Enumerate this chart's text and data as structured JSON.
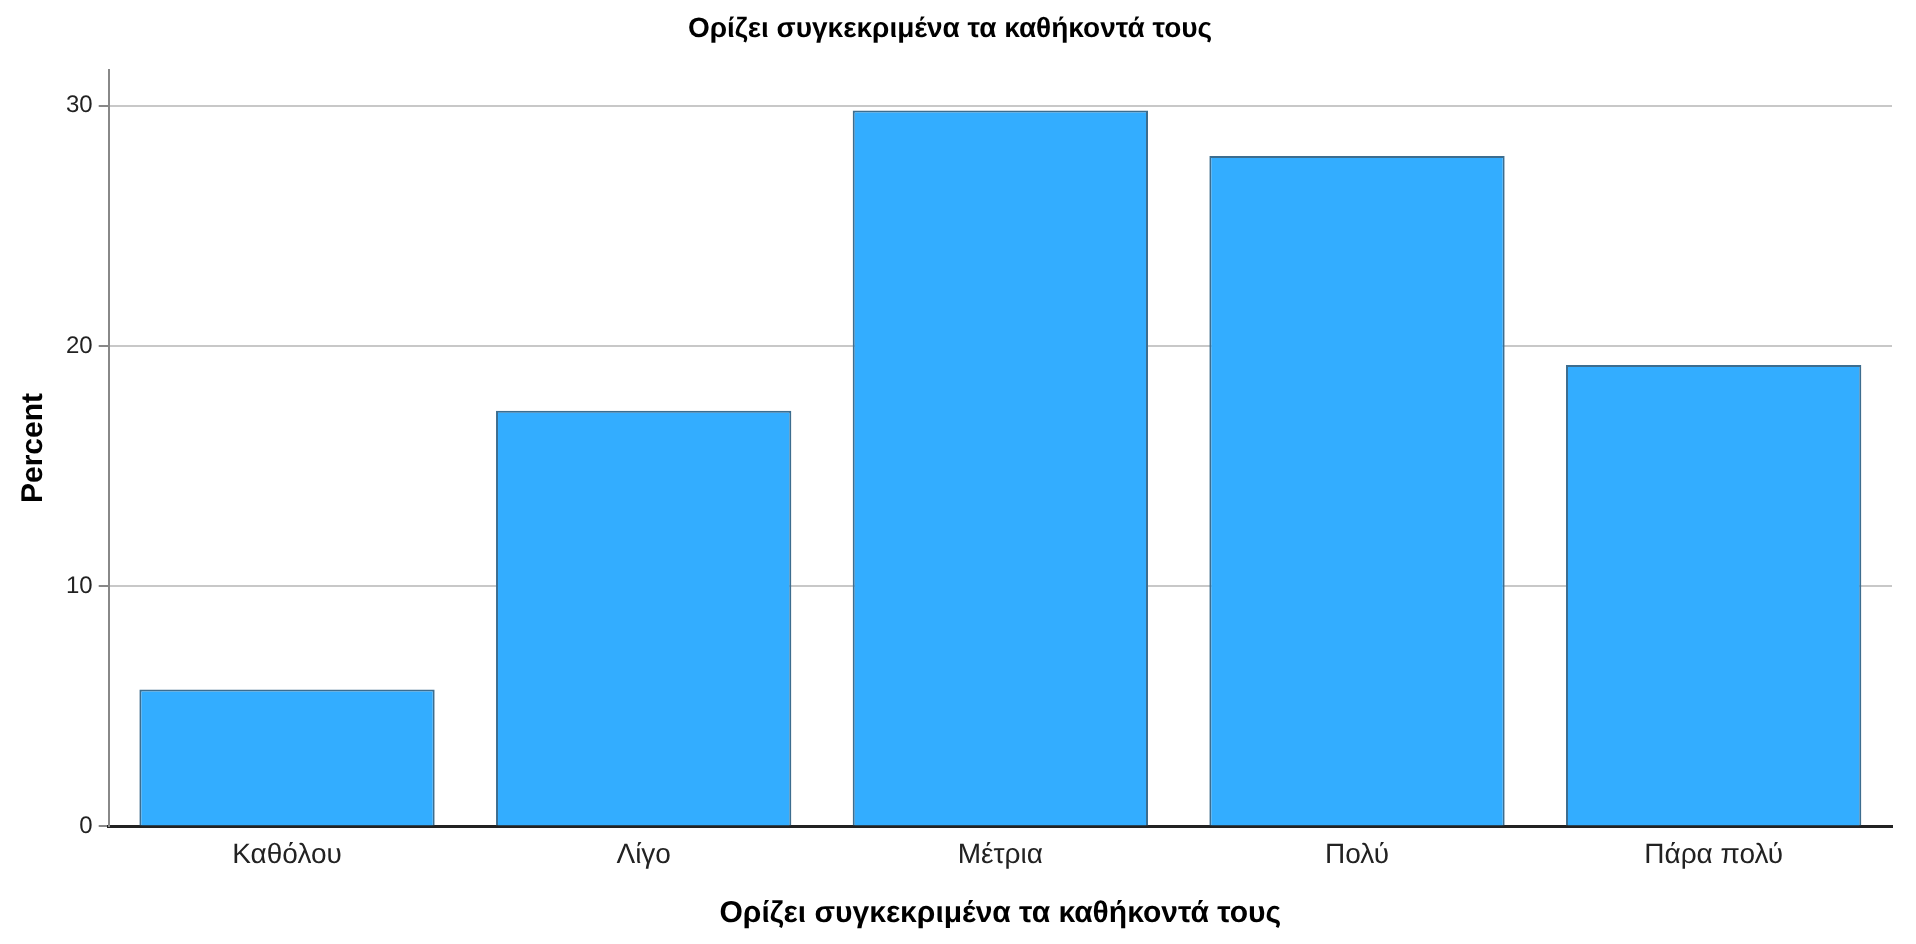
{
  "chart_data": {
    "type": "bar",
    "title": "Ορίζει συγκεκριμένα τα καθήκοντά τους",
    "xlabel": "Ορίζει συγκεκριμένα τα καθήκοντά τους",
    "ylabel": "Percent",
    "categories": [
      "Καθόλου",
      "Λίγο",
      "Μέτρια",
      "Πολύ",
      "Πάρα πολύ"
    ],
    "values": [
      5.7,
      17.3,
      29.8,
      27.9,
      19.2
    ],
    "color": "#33adff",
    "ylim": [
      0,
      31.5
    ],
    "yticks": [
      0,
      10,
      20,
      30
    ],
    "grid": "y"
  }
}
